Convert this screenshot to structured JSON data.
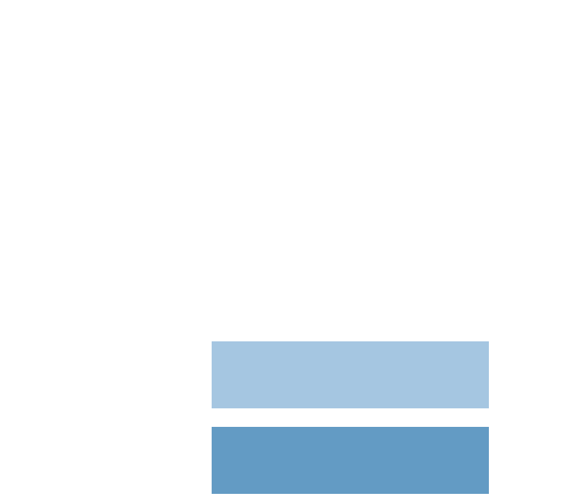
{
  "colors": {
    "background": "#ffffff",
    "block_upper": "#a5c6e1",
    "block_lower": "#639bc4"
  },
  "blocks": [
    {
      "name": "light-blue-block",
      "color_key": "block_upper"
    },
    {
      "name": "medium-blue-block",
      "color_key": "block_lower"
    }
  ]
}
